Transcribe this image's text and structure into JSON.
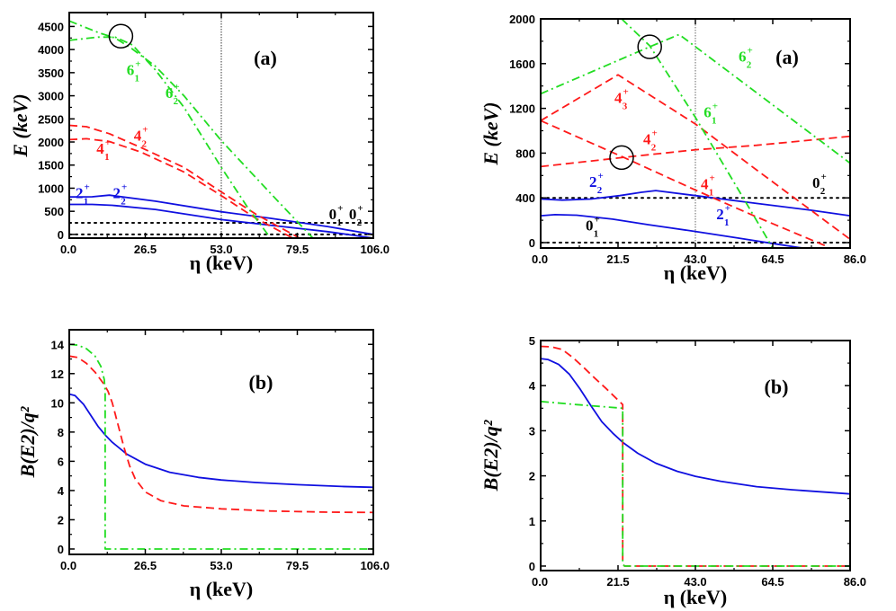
{
  "colors": {
    "blue": "#1010e0",
    "red": "#ff1a1a",
    "green": "#22dd22",
    "black": "#000000",
    "gray": "#666666"
  },
  "chart_data": [
    {
      "id": "top-left",
      "type": "line",
      "panel_label": "(a)",
      "xlabel": "η (keV)",
      "ylabel": "E (keV)",
      "xlim": [
        0,
        106
      ],
      "ylim": [
        -80,
        4800
      ],
      "xticks": [
        0,
        26.5,
        53,
        79.5,
        106
      ],
      "xtick_labels": [
        "0.0",
        "26.5",
        "53.0",
        "79.5",
        "106.0"
      ],
      "yticks": [
        0,
        500,
        1000,
        1500,
        2000,
        2500,
        3000,
        3500,
        4000,
        4500
      ],
      "ytick_labels": [
        "0",
        "500",
        "1000",
        "1500",
        "2000",
        "2500",
        "3000",
        "3500",
        "4000",
        "4500"
      ],
      "vline": 53,
      "circles": [
        {
          "x": 18,
          "y": 4290
        }
      ],
      "series": [
        {
          "name": "0_1+",
          "style": "dotted",
          "color": "black",
          "x": [
            0,
            106
          ],
          "y": [
            0,
            0
          ]
        },
        {
          "name": "0_2+",
          "style": "dotted",
          "color": "black",
          "x": [
            0,
            106
          ],
          "y": [
            250,
            250
          ]
        },
        {
          "name": "2_1+",
          "style": "solid",
          "color": "blue",
          "x": [
            0,
            8,
            15,
            30,
            53,
            70,
            90,
            106
          ],
          "y": [
            650,
            650,
            630,
            540,
            320,
            200,
            60,
            -80
          ]
        },
        {
          "name": "2_2+",
          "style": "solid",
          "color": "blue",
          "x": [
            0,
            8,
            14,
            30,
            53,
            70,
            90,
            106
          ],
          "y": [
            810,
            815,
            850,
            720,
            490,
            350,
            170,
            0
          ]
        },
        {
          "name": "4_1+",
          "style": "dashed",
          "color": "red",
          "x": [
            0,
            6,
            14,
            25,
            40,
            53,
            65,
            80
          ],
          "y": [
            2050,
            2070,
            2010,
            1780,
            1350,
            840,
            350,
            -150
          ]
        },
        {
          "name": "4_2+",
          "style": "dashed",
          "color": "red",
          "x": [
            0,
            6,
            14,
            25,
            40,
            53,
            65,
            80
          ],
          "y": [
            2360,
            2330,
            2180,
            1880,
            1450,
            920,
            440,
            -70
          ]
        },
        {
          "name": "6_1+",
          "style": "dashdot",
          "color": "green",
          "x": [
            0,
            10,
            16,
            22,
            30,
            40,
            53,
            62,
            71
          ],
          "y": [
            4200,
            4270,
            4270,
            4100,
            3560,
            2750,
            1450,
            600,
            -150
          ]
        },
        {
          "name": "6_2+",
          "style": "dashdot",
          "color": "green",
          "x": [
            0,
            10,
            16,
            22,
            30,
            40,
            53,
            70,
            86
          ],
          "y": [
            4620,
            4370,
            4250,
            4010,
            3640,
            3000,
            2030,
            900,
            -150
          ]
        }
      ],
      "annotations": [
        {
          "text": "6",
          "sub": "1",
          "sup": "+",
          "x": 20,
          "y": 3450,
          "color": "green"
        },
        {
          "text": "6",
          "sub": "2",
          "sup": "+",
          "x": 33.5,
          "y": 2950,
          "color": "green"
        },
        {
          "text": "4",
          "sub": "1",
          "sup": "+",
          "x": 9.5,
          "y": 1750,
          "color": "red"
        },
        {
          "text": "4",
          "sub": "2",
          "sup": "+",
          "x": 22.5,
          "y": 2030,
          "color": "red"
        },
        {
          "text": "2",
          "sub": "1",
          "sup": "+",
          "x": 2.2,
          "y": 790,
          "color": "blue"
        },
        {
          "text": "2",
          "sub": "2",
          "sup": "+",
          "x": 15.2,
          "y": 790,
          "color": "blue"
        },
        {
          "text": "0",
          "sub": "1",
          "sup": "+",
          "x": 90.5,
          "y": 330,
          "color": "black"
        },
        {
          "text": "0",
          "sub": "2",
          "sup": "+",
          "x": 97.5,
          "y": 330,
          "color": "black"
        }
      ]
    },
    {
      "id": "top-right",
      "type": "line",
      "panel_label": "(a)",
      "xlabel": "η (keV)",
      "ylabel": "E (keV)",
      "xlim": [
        0,
        86
      ],
      "ylim": [
        -48,
        2000
      ],
      "xticks": [
        0,
        21.5,
        43,
        64.5,
        86
      ],
      "xtick_labels": [
        "0.0",
        "21.5",
        "43.0",
        "64.5",
        "86.0"
      ],
      "yticks": [
        0,
        400,
        800,
        1200,
        1600,
        2000
      ],
      "ytick_labels": [
        "0",
        "400",
        "800",
        "1200",
        "1600",
        "2000"
      ],
      "vline": 43,
      "circles": [
        {
          "x": 30.3,
          "y": 1750
        },
        {
          "x": 22.5,
          "y": 760
        }
      ],
      "series": [
        {
          "name": "0_1+",
          "style": "dotted",
          "color": "black",
          "x": [
            0,
            86
          ],
          "y": [
            0,
            0
          ]
        },
        {
          "name": "0_2+",
          "style": "dotted",
          "color": "black",
          "x": [
            0,
            86
          ],
          "y": [
            400,
            400
          ]
        },
        {
          "name": "2_1+",
          "style": "solid",
          "color": "blue",
          "x": [
            0,
            4,
            10,
            20,
            30,
            43,
            55,
            65,
            73
          ],
          "y": [
            240,
            250,
            245,
            210,
            160,
            100,
            40,
            -10,
            -50
          ]
        },
        {
          "name": "2_2+",
          "style": "solid",
          "color": "blue",
          "x": [
            0,
            6,
            14,
            22,
            28,
            32,
            43,
            60,
            75,
            86
          ],
          "y": [
            390,
            380,
            390,
            420,
            450,
            465,
            420,
            350,
            290,
            240
          ]
        },
        {
          "name": "4_1+",
          "style": "dashed",
          "color": "red",
          "x": [
            0,
            22.5,
            43,
            60,
            80
          ],
          "y": [
            1090,
            770,
            470,
            230,
            -40
          ]
        },
        {
          "name": "4_2+",
          "style": "dashed",
          "color": "red",
          "x": [
            0,
            22.5,
            43,
            60,
            86
          ],
          "y": [
            680,
            760,
            830,
            870,
            950
          ]
        },
        {
          "name": "4_3+",
          "style": "dashed",
          "color": "red",
          "x": [
            0,
            21.5,
            43,
            60,
            86
          ],
          "y": [
            1090,
            1500,
            1060,
            650,
            30
          ]
        },
        {
          "name": "6_1+",
          "style": "dashdot",
          "color": "green",
          "x": [
            22.5,
            30.3,
            43,
            55,
            64.5
          ],
          "y": [
            2000,
            1760,
            1120,
            470,
            -48
          ]
        },
        {
          "name": "6_2+",
          "style": "dashdot",
          "color": "green",
          "x": [
            0,
            30.3,
            38.5,
            60,
            86
          ],
          "y": [
            1330,
            1750,
            1860,
            1340,
            710
          ]
        }
      ],
      "annotations": [
        {
          "text": "6",
          "sub": "2",
          "sup": "+",
          "x": 55,
          "y": 1620,
          "color": "green"
        },
        {
          "text": "6",
          "sub": "1",
          "sup": "+",
          "x": 45.3,
          "y": 1120,
          "color": "green"
        },
        {
          "text": "4",
          "sub": "3",
          "sup": "+",
          "x": 20.5,
          "y": 1250,
          "color": "red"
        },
        {
          "text": "4",
          "sub": "2",
          "sup": "+",
          "x": 28.5,
          "y": 880,
          "color": "red"
        },
        {
          "text": "4",
          "sub": "1",
          "sup": "+",
          "x": 44.5,
          "y": 480,
          "color": "red"
        },
        {
          "text": "2",
          "sub": "2",
          "sup": "+",
          "x": 13.5,
          "y": 500,
          "color": "blue"
        },
        {
          "text": "2",
          "sub": "1",
          "sup": "+",
          "x": 48.8,
          "y": 210,
          "color": "blue"
        },
        {
          "text": "0",
          "sub": "1",
          "sup": "+",
          "x": 12.5,
          "y": 110,
          "color": "black"
        },
        {
          "text": "0",
          "sub": "2",
          "sup": "+",
          "x": 75.5,
          "y": 490,
          "color": "black"
        }
      ]
    },
    {
      "id": "bottom-left",
      "type": "line",
      "panel_label": "(b)",
      "xlabel": "η (keV)",
      "ylabel": "B(E2)/q²",
      "xlim": [
        0,
        106
      ],
      "ylim": [
        -0.37,
        15
      ],
      "xticks": [
        0,
        26.5,
        53,
        79.5,
        106
      ],
      "xtick_labels": [
        "0.0",
        "26.5",
        "53.0",
        "79.5",
        "106.0"
      ],
      "yticks": [
        0,
        2,
        4,
        6,
        8,
        10,
        12,
        14
      ],
      "ytick_labels": [
        "0",
        "2",
        "4",
        "6",
        "8",
        "10",
        "12",
        "14"
      ],
      "series": [
        {
          "name": "solid",
          "style": "solid",
          "color": "blue",
          "x": [
            0,
            2,
            5,
            8,
            10,
            12.5,
            15,
            20,
            26.5,
            35,
            45,
            53,
            65,
            79.5,
            95,
            106
          ],
          "y": [
            10.6,
            10.5,
            9.9,
            9.0,
            8.4,
            7.8,
            7.3,
            6.5,
            5.8,
            5.25,
            4.9,
            4.72,
            4.55,
            4.4,
            4.28,
            4.22
          ]
        },
        {
          "name": "dashed",
          "style": "dashed",
          "color": "red",
          "x": [
            0,
            3,
            6,
            9,
            12,
            13.5,
            15,
            17,
            19,
            21,
            23,
            26.5,
            32,
            40,
            53,
            70,
            90,
            106
          ],
          "y": [
            13.2,
            13.1,
            12.7,
            12.1,
            11.3,
            10.8,
            10.0,
            8.5,
            7.0,
            5.7,
            4.8,
            3.9,
            3.3,
            2.95,
            2.75,
            2.6,
            2.52,
            2.5
          ]
        },
        {
          "name": "dashdot",
          "style": "dashdot",
          "color": "green",
          "x": [
            0,
            3,
            6,
            9,
            11,
            12.2,
            12.5,
            12.5,
            13,
            106
          ],
          "y": [
            14.0,
            13.95,
            13.7,
            13.2,
            12.5,
            11.6,
            10.8,
            0.0,
            0.0,
            0.0
          ]
        }
      ]
    },
    {
      "id": "bottom-right",
      "type": "line",
      "panel_label": "(b)",
      "xlabel": "η (keV)",
      "ylabel": "B(E2)/q²",
      "xlim": [
        0,
        86
      ],
      "ylim": [
        -0.1,
        5
      ],
      "xticks": [
        0,
        21.5,
        43,
        64.5,
        86
      ],
      "xtick_labels": [
        "0.0",
        "21.5",
        "43.0",
        "64.5",
        "86.0"
      ],
      "yticks": [
        0,
        1,
        2,
        3,
        4,
        5
      ],
      "ytick_labels": [
        "0",
        "1",
        "2",
        "3",
        "4",
        "5"
      ],
      "series": [
        {
          "name": "solid",
          "style": "solid",
          "color": "blue",
          "x": [
            0,
            2,
            5,
            8,
            11,
            14,
            17,
            20,
            23,
            27,
            32,
            38,
            43,
            50,
            60,
            70,
            86
          ],
          "y": [
            4.6,
            4.58,
            4.47,
            4.25,
            3.92,
            3.55,
            3.2,
            2.95,
            2.73,
            2.5,
            2.28,
            2.1,
            1.99,
            1.88,
            1.76,
            1.69,
            1.6
          ]
        },
        {
          "name": "dashed",
          "style": "dashed",
          "color": "red",
          "x": [
            0,
            3,
            6,
            9,
            12,
            15,
            18,
            21,
            22.8,
            22.8,
            23.3,
            86
          ],
          "y": [
            4.87,
            4.86,
            4.8,
            4.62,
            4.4,
            4.17,
            3.95,
            3.72,
            3.58,
            0.05,
            0.0,
            0.0
          ]
        },
        {
          "name": "dashdot",
          "style": "dashdot",
          "color": "green",
          "x": [
            0,
            10,
            22.8,
            22.8,
            23.3,
            86
          ],
          "y": [
            3.65,
            3.58,
            3.5,
            0.05,
            0.0,
            0.0
          ]
        }
      ]
    }
  ]
}
